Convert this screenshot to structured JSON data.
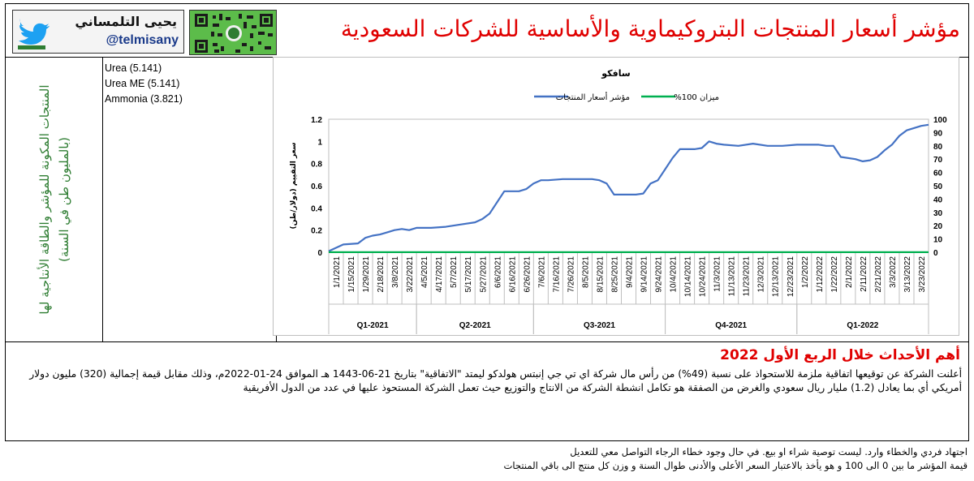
{
  "header": {
    "title": "مؤشر أسعار المنتجات البتروكيماوية والأساسية للشركات السعودية",
    "brand_name": "يحيى التلمساني",
    "brand_handle": "@telmisany"
  },
  "company_column": {
    "text": "المنتجات المكونة للمؤشر والطاقة الأنتاجية لها (بالمليون طن في السنة)"
  },
  "products": [
    {
      "label": "Urea (5.141)"
    },
    {
      "label": "Urea ME (5.141)"
    },
    {
      "label": "Ammonia (3.821)"
    }
  ],
  "chart_data": {
    "type": "line",
    "title": "سافكو",
    "ylabel": "سعر التقييم (دولار/طن)",
    "ylim": [
      0,
      1.2
    ],
    "y_ticks": [
      "0",
      "0.2",
      "0.4",
      "0.6",
      "0.8",
      "1",
      "1.2"
    ],
    "y2lim": [
      0,
      100
    ],
    "y2_ticks": [
      "0",
      "10",
      "20",
      "30",
      "40",
      "50",
      "60",
      "70",
      "80",
      "90",
      "100"
    ],
    "x_labels": [
      "1/1/2021",
      "1/15/2021",
      "1/29/2021",
      "2/18/2021",
      "3/8/2021",
      "3/22/2021",
      "4/5/2021",
      "4/17/2021",
      "5/7/2021",
      "5/17/2021",
      "5/27/2021",
      "6/6/2021",
      "6/16/2021",
      "6/26/2021",
      "7/6/2021",
      "7/16/2021",
      "7/26/2021",
      "8/5/2021",
      "8/15/2021",
      "8/25/2021",
      "9/4/2021",
      "9/14/2021",
      "9/24/2021",
      "10/4/2021",
      "10/14/2021",
      "10/24/2021",
      "11/3/2021",
      "11/13/2021",
      "11/23/2021",
      "12/3/2021",
      "12/13/2021",
      "12/23/2021",
      "1/2/2022",
      "1/12/2022",
      "1/22/2022",
      "2/1/2022",
      "2/11/2022",
      "2/21/2022",
      "3/3/2022",
      "3/13/2022",
      "3/23/2022"
    ],
    "quarters": [
      {
        "label": "Q1-2021",
        "from": 0,
        "to": 6
      },
      {
        "label": "Q2-2021",
        "from": 6,
        "to": 14
      },
      {
        "label": "Q3-2021",
        "from": 14,
        "to": 23
      },
      {
        "label": "Q4-2021",
        "from": 23,
        "to": 32
      },
      {
        "label": "Q1-2022",
        "from": 32,
        "to": 41
      }
    ],
    "legend": {
      "position": "top",
      "entries": [
        {
          "name": "ميزان 100%",
          "color": "#00b050"
        },
        {
          "name": "مؤشر أسعار المنتجات",
          "color": "#4472c4"
        }
      ]
    },
    "series": [
      {
        "name": "مؤشر أسعار المنتجات",
        "color": "#4472c4",
        "axis": "left",
        "points": [
          [
            0,
            0.01
          ],
          [
            0.5,
            0.04
          ],
          [
            1,
            0.07
          ],
          [
            2,
            0.08
          ],
          [
            2.5,
            0.13
          ],
          [
            3,
            0.15
          ],
          [
            3.5,
            0.16
          ],
          [
            4,
            0.18
          ],
          [
            4.5,
            0.2
          ],
          [
            5,
            0.21
          ],
          [
            5.5,
            0.2
          ],
          [
            6,
            0.22
          ],
          [
            7,
            0.22
          ],
          [
            8,
            0.23
          ],
          [
            9,
            0.25
          ],
          [
            10,
            0.27
          ],
          [
            10.5,
            0.3
          ],
          [
            11,
            0.35
          ],
          [
            11.5,
            0.45
          ],
          [
            12,
            0.55
          ],
          [
            13,
            0.55
          ],
          [
            13.5,
            0.57
          ],
          [
            14,
            0.62
          ],
          [
            14.5,
            0.65
          ],
          [
            15,
            0.65
          ],
          [
            16,
            0.66
          ],
          [
            17,
            0.66
          ],
          [
            18,
            0.66
          ],
          [
            18.5,
            0.65
          ],
          [
            19,
            0.62
          ],
          [
            19.5,
            0.52
          ],
          [
            20,
            0.52
          ],
          [
            21,
            0.52
          ],
          [
            21.5,
            0.53
          ],
          [
            22,
            0.62
          ],
          [
            22.5,
            0.65
          ],
          [
            23,
            0.75
          ],
          [
            23.5,
            0.85
          ],
          [
            24,
            0.93
          ],
          [
            25,
            0.93
          ],
          [
            25.5,
            0.94
          ],
          [
            26,
            1.0
          ],
          [
            26.5,
            0.98
          ],
          [
            27,
            0.97
          ],
          [
            28,
            0.96
          ],
          [
            29,
            0.98
          ],
          [
            30,
            0.96
          ],
          [
            31,
            0.96
          ],
          [
            32,
            0.97
          ],
          [
            33,
            0.97
          ],
          [
            33.5,
            0.97
          ],
          [
            34,
            0.96
          ],
          [
            34.5,
            0.96
          ],
          [
            35,
            0.86
          ],
          [
            36,
            0.84
          ],
          [
            36.5,
            0.82
          ],
          [
            37,
            0.83
          ],
          [
            37.5,
            0.86
          ],
          [
            38,
            0.92
          ],
          [
            38.5,
            0.97
          ],
          [
            39,
            1.05
          ],
          [
            39.5,
            1.1
          ],
          [
            40,
            1.12
          ],
          [
            40.5,
            1.14
          ],
          [
            41,
            1.15
          ]
        ]
      },
      {
        "name": "ميزان 100%",
        "color": "#00b050",
        "axis": "left",
        "points": [
          [
            0,
            0.001
          ],
          [
            41,
            0.001
          ]
        ]
      }
    ]
  },
  "events": {
    "title": "أهم الأحداث خلال الربع الأول 2022",
    "line1": "أعلنت الشركة عن توقيعها اتفاقية ملزمة للاستحواذ على نسبة (49%) من رأس مال شركة اي تي جي إنبتس هولدكو ليمتد \"الاتفاقية\" بتاريخ 21-06-1443 هـ الموافق 24-01-2022م، وذلك مقابل قيمة إجمالية (320) مليون دولار",
    "line2": "أمريكي أي بما يعادل (1.2) مليار ريال سعودي والغرض من الصفقة هو تكامل انشطة الشركة من الانتاج والتوزيع حيث تعمل الشركة المستحوذ عليها في عدد من الدول الأفريقية"
  },
  "footer": {
    "line1": "اجتهاد فردي والخطاء وارد. ليست توصية شراء او بيع. في حال وجود خطاء الرجاء التواصل معي للتعديل",
    "line2": "قيمة المؤشر ما بين 0 الى 100 و هو يأخذ بالاعتبار السعر الأعلى والأدنى طوال السنة و وزن كل منتج الى باقي المنتجات"
  },
  "colors": {
    "title_red": "#e00000",
    "company_green": "#2e7d32",
    "series_blue": "#4472c4",
    "series_green": "#00b050"
  }
}
